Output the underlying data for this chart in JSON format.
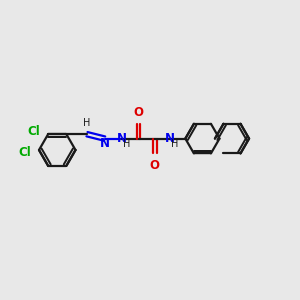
{
  "background_color": "#e8e8e8",
  "bond_color": "#1a1a1a",
  "cl_color": "#00aa00",
  "nitrogen_color": "#0000ee",
  "oxygen_color": "#dd0000",
  "line_width": 1.6,
  "font_size": 8.5,
  "fig_width": 3.0,
  "fig_height": 3.0,
  "dpi": 100,
  "xlim": [
    0,
    10
  ],
  "ylim": [
    2,
    8
  ]
}
